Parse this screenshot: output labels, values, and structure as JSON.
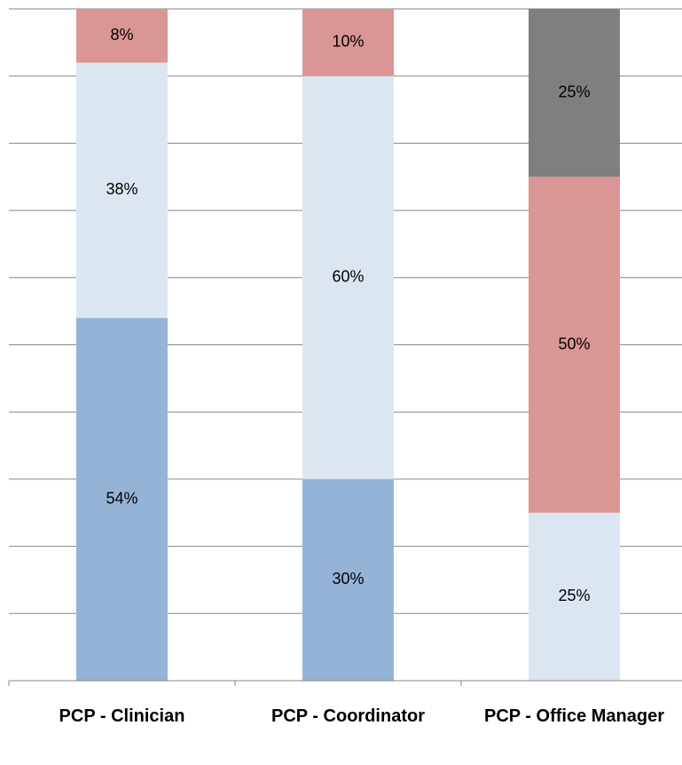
{
  "chart_data": {
    "type": "stacked-bar",
    "categories": [
      "PCP - Clinician",
      "PCP - Coordinator",
      "PCP - Office Manager"
    ],
    "series": [
      {
        "color": "#95b3d7",
        "values": [
          54,
          30,
          null
        ],
        "value_labels": [
          "54%",
          "30%",
          null
        ]
      },
      {
        "color": "#dce6f2",
        "values": [
          38,
          60,
          25
        ],
        "value_labels": [
          "38%",
          "60%",
          "25%"
        ]
      },
      {
        "color": "#d99694",
        "values": [
          8,
          10,
          50
        ],
        "value_labels": [
          "8%",
          "10%",
          "50%"
        ]
      },
      {
        "color": "#7f7f7f",
        "values": [
          null,
          null,
          25
        ],
        "value_labels": [
          null,
          null,
          "25%"
        ]
      }
    ],
    "ylim": [
      0,
      100
    ],
    "yticks": [
      0,
      10,
      20,
      30,
      40,
      50,
      60,
      70,
      80,
      90,
      100
    ],
    "grid": true
  }
}
